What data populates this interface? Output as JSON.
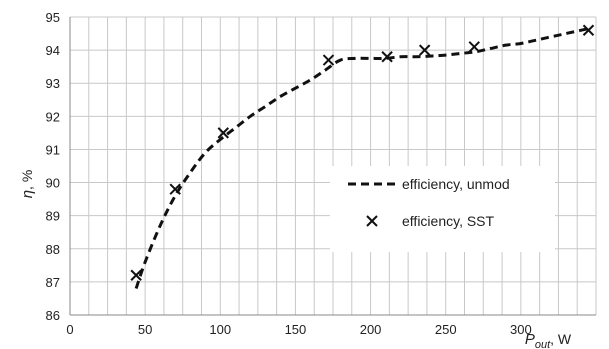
{
  "chart_data": {
    "type": "line",
    "title": "",
    "xlabel": {
      "symbol": "P",
      "subscript": "out",
      "unit": ", W"
    },
    "ylabel": {
      "symbol": "η",
      "unit": ", %"
    },
    "xlim": [
      0,
      350
    ],
    "ylim": [
      86,
      95
    ],
    "x_ticks": [
      "0",
      "50",
      "100",
      "150",
      "200",
      "250",
      "300"
    ],
    "y_ticks": [
      "86",
      "87",
      "88",
      "89",
      "90",
      "91",
      "92",
      "93",
      "94",
      "95"
    ],
    "grid": true,
    "legend_position": "center-right",
    "series": [
      {
        "name": "efficiency, unmod",
        "style": "dashed-line",
        "color": "#111111",
        "x": [
          44,
          50,
          60,
          70,
          80,
          90,
          100,
          110,
          120,
          130,
          140,
          150,
          160,
          170,
          180,
          190,
          200,
          210,
          220,
          230,
          240,
          250,
          260,
          270,
          280,
          290,
          300,
          310,
          320,
          330,
          345
        ],
        "y": [
          86.8,
          87.6,
          88.7,
          89.6,
          90.3,
          90.9,
          91.3,
          91.65,
          92.0,
          92.3,
          92.6,
          92.85,
          93.1,
          93.4,
          93.7,
          93.75,
          93.75,
          93.75,
          93.8,
          93.8,
          93.82,
          93.85,
          93.9,
          93.95,
          94.05,
          94.15,
          94.2,
          94.3,
          94.4,
          94.5,
          94.65
        ]
      },
      {
        "name": "efficiency, SST",
        "style": "x-marker",
        "color": "#111111",
        "x": [
          44,
          70,
          102,
          172,
          211,
          236,
          269,
          345
        ],
        "y": [
          87.2,
          89.8,
          91.5,
          93.7,
          93.8,
          94.0,
          94.1,
          94.6
        ]
      }
    ]
  }
}
